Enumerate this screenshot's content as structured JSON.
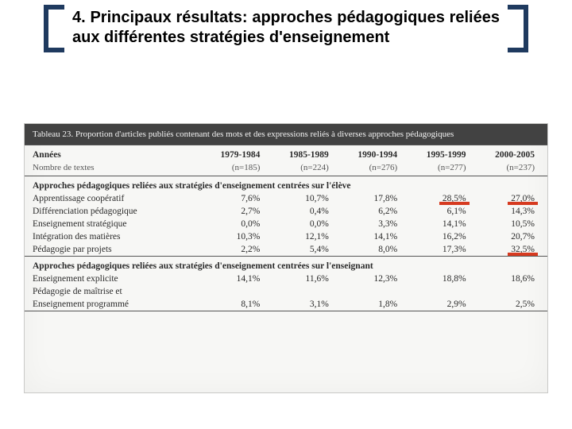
{
  "title": "4. Principaux résultats: approches pédagogiques reliées aux différentes stratégies d'enseignement",
  "caption": "Tableau 23. Proportion d'articles publiés contenant des mots et des expressions reliés à diverses approches pédagogiques",
  "colors": {
    "bracket": "#1f3a5f",
    "highlight": "#d63a1f",
    "caption_bg": "#424242",
    "caption_fg": "#f5f5f5",
    "table_bg": "#f7f7f5",
    "divider": "#555555"
  },
  "fonts": {
    "title_family": "Arial",
    "title_size_pt": 20,
    "title_weight": "bold",
    "body_family": "Georgia",
    "body_size_pt": 11.5,
    "caption_size_pt": 11
  },
  "years_header_label": "Années",
  "count_header_label": "Nombre de textes",
  "periods": [
    {
      "label": "1979-1984",
      "n": "(n=185)"
    },
    {
      "label": "1985-1989",
      "n": "(n=224)"
    },
    {
      "label": "1990-1994",
      "n": "(n=276)"
    },
    {
      "label": "1995-1999",
      "n": "(n=277)"
    },
    {
      "label": "2000-2005",
      "n": "(n=237)"
    }
  ],
  "section1_title": "Approches pédagogiques reliées aux stratégies d'enseignement centrées sur l'élève",
  "section1_rows": [
    {
      "label": "Apprentissage coopératif",
      "vals": [
        "7,6%",
        "10,7%",
        "17,8%",
        "28,5%",
        "27,0%"
      ],
      "hl": [
        3,
        4
      ]
    },
    {
      "label": "Différenciation pédagogique",
      "vals": [
        "2,7%",
        "0,4%",
        "6,2%",
        "6,1%",
        "14,3%"
      ],
      "hl": []
    },
    {
      "label": "Enseignement stratégique",
      "vals": [
        "0,0%",
        "0,0%",
        "3,3%",
        "14,1%",
        "10,5%"
      ],
      "hl": []
    },
    {
      "label": "Intégration des matières",
      "vals": [
        "10,3%",
        "12,1%",
        "14,1%",
        "16,2%",
        "20,7%"
      ],
      "hl": []
    },
    {
      "label": "Pédagogie par projets",
      "vals": [
        "2,2%",
        "5,4%",
        "8,0%",
        "17,3%",
        "32,5%"
      ],
      "hl": [
        4
      ]
    }
  ],
  "section2_title": "Approches pédagogiques reliées aux stratégies d'enseignement centrées sur l'enseignant",
  "section2_rows": [
    {
      "label": "Enseignement explicite",
      "vals": [
        "14,1%",
        "11,6%",
        "12,3%",
        "18,8%",
        "18,6%"
      ],
      "hl": []
    },
    {
      "label": "Pédagogie de maîtrise et",
      "vals": [
        "",
        "",
        "",
        "",
        ""
      ],
      "hl": []
    },
    {
      "label": "Enseignement programmé",
      "vals": [
        "8,1%",
        "3,1%",
        "1,8%",
        "2,9%",
        "2,5%"
      ],
      "hl": []
    }
  ]
}
